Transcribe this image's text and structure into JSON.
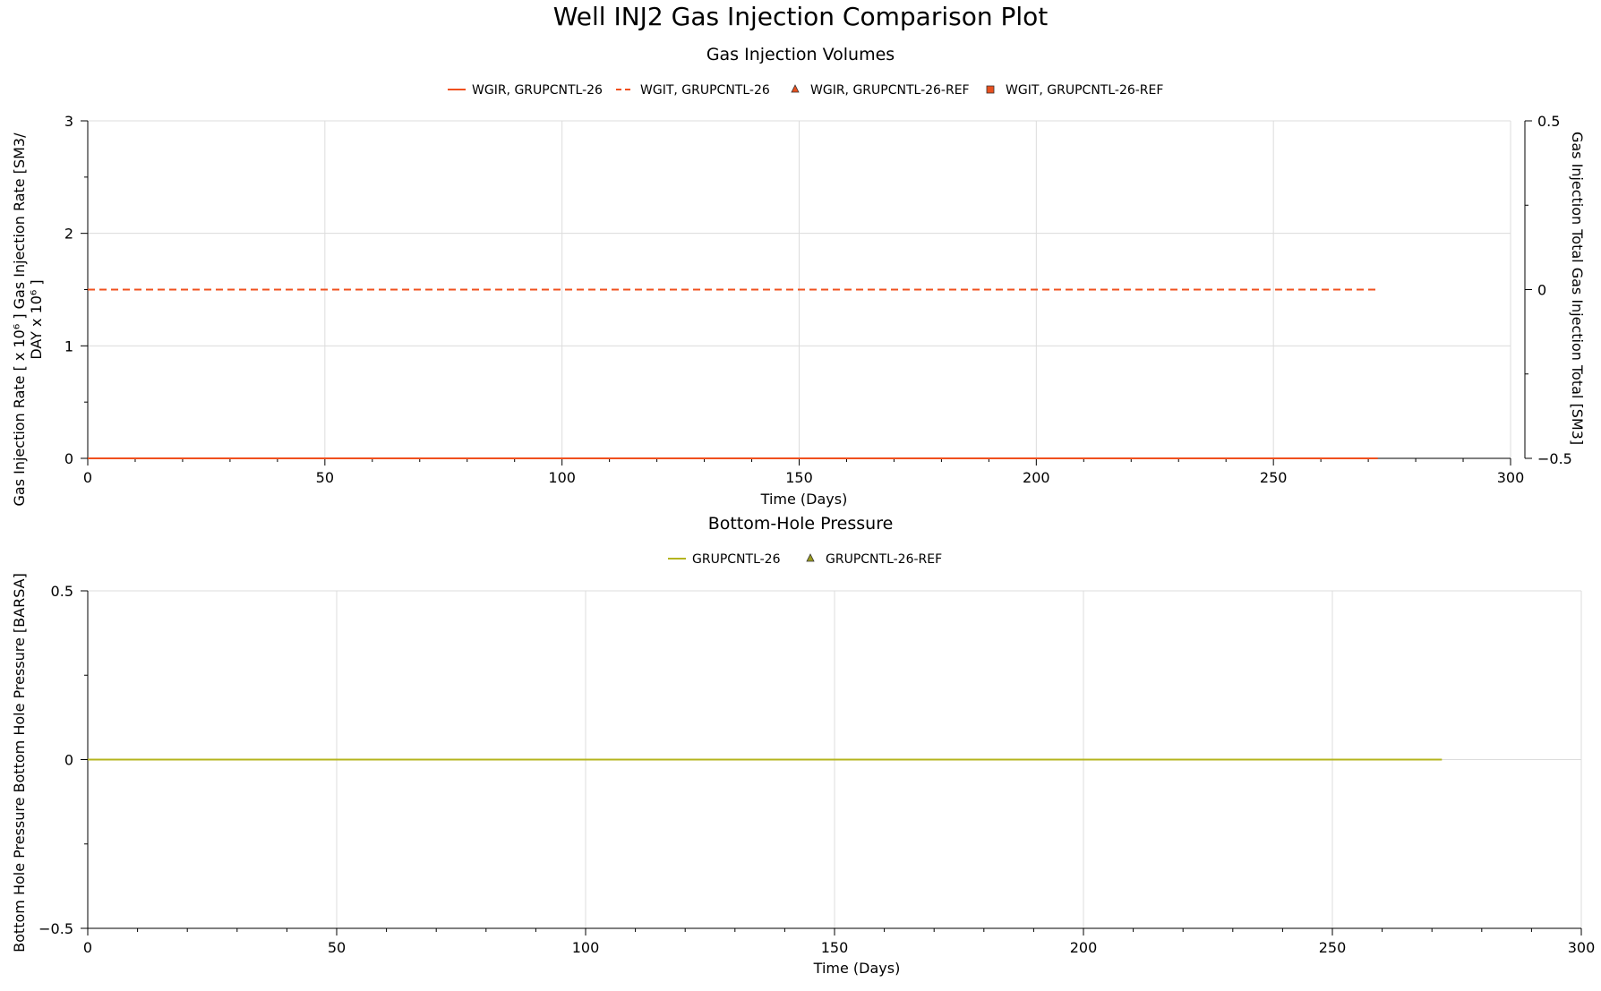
{
  "page": {
    "title": "Well INJ2 Gas Injection Comparison Plot"
  },
  "chart_data": [
    {
      "type": "line",
      "title": "Gas Injection Volumes",
      "xlabel": "Time (Days)",
      "ylabel_lines": [
        "Gas Injection Rate [ x 10⁶ ] Gas Injection Rate [SM3/",
        "DAY x 10⁶ ]"
      ],
      "y2label": "Gas Injection Total Gas Injection Total [SM3]",
      "xlim": [
        0,
        300
      ],
      "ylim": [
        0,
        3
      ],
      "y2lim": [
        -0.5,
        0.5
      ],
      "x_ticks": [
        0,
        50,
        100,
        150,
        200,
        250,
        300
      ],
      "y_ticks": [
        0,
        1,
        2,
        3
      ],
      "y2_ticks": [
        -0.5,
        0,
        0.5
      ],
      "y2_tick_labels": [
        "−0.5",
        "0",
        "0.5"
      ],
      "grid": true,
      "legend_position": "top",
      "series": [
        {
          "name": "WGIR, GRUPCNTL-26",
          "axis": "left",
          "style": "solid",
          "marker": "none",
          "color": "#f0501e",
          "x": [
            0,
            272
          ],
          "y": [
            0,
            0
          ]
        },
        {
          "name": "WGIT, GRUPCNTL-26",
          "axis": "right",
          "style": "dashed",
          "marker": "none",
          "color": "#f0501e",
          "x": [
            0,
            272
          ],
          "y": [
            0,
            0
          ]
        },
        {
          "name": "WGIR, GRUPCNTL-26-REF",
          "axis": "left",
          "style": "none",
          "marker": "triangle",
          "color": "#e8501e",
          "x": [],
          "y": []
        },
        {
          "name": "WGIT, GRUPCNTL-26-REF",
          "axis": "right",
          "style": "none",
          "marker": "square",
          "color": "#e8501e",
          "x": [],
          "y": []
        }
      ]
    },
    {
      "type": "line",
      "title": "Bottom-Hole Pressure",
      "xlabel": "Time (Days)",
      "ylabel_lines": [
        "Bottom Hole Pressure Bottom Hole Pressure [BARSA]"
      ],
      "xlim": [
        0,
        300
      ],
      "ylim": [
        -0.5,
        0.5
      ],
      "x_ticks": [
        0,
        50,
        100,
        150,
        200,
        250,
        300
      ],
      "y_ticks": [
        -0.5,
        0,
        0.5
      ],
      "y_tick_labels": [
        "−0.5",
        "0",
        "0.5"
      ],
      "grid": true,
      "legend_position": "top",
      "series": [
        {
          "name": "GRUPCNTL-26",
          "axis": "left",
          "style": "solid",
          "marker": "none",
          "color": "#b4b41e",
          "x": [
            0,
            272
          ],
          "y": [
            0,
            0
          ]
        },
        {
          "name": "GRUPCNTL-26-REF",
          "axis": "left",
          "style": "none",
          "marker": "triangle",
          "color": "#9a9a1e",
          "x": [],
          "y": []
        }
      ]
    }
  ]
}
